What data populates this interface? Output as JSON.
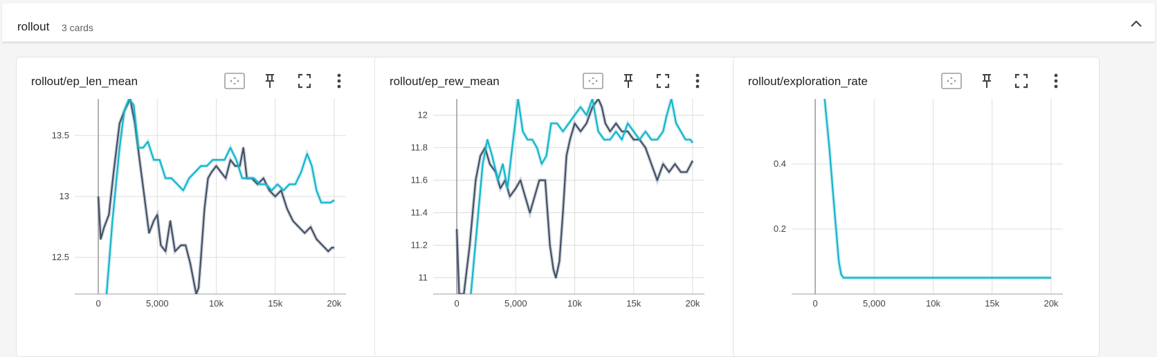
{
  "group": {
    "title": "rollout",
    "count": "3 cards"
  },
  "icons": {
    "collapse": "chevron-up-icon",
    "fit": "fit-domain-icon",
    "pin": "pin-icon",
    "fullscreen": "fullscreen-icon",
    "more": "more-vert-icon"
  },
  "colors": {
    "run1": "#425066",
    "run2": "#12b5cb",
    "grid": "#dddddd",
    "axis": "#9e9e9e"
  },
  "cards": [
    {
      "title": "rollout/ep_len_mean"
    },
    {
      "title": "rollout/ep_rew_mean"
    },
    {
      "title": "rollout/exploration_rate"
    }
  ],
  "chart_data": [
    {
      "type": "line",
      "title": "rollout/ep_len_mean",
      "xlim": [
        -2000,
        21000
      ],
      "ylim": [
        12.2,
        13.8
      ],
      "xticks": [
        0,
        5000,
        10000,
        15000,
        20000
      ],
      "xtick_labels": [
        "0",
        "5,000",
        "10k",
        "15k",
        "20k"
      ],
      "yticks": [
        12.5,
        13,
        13.5
      ],
      "ytick_labels": [
        "12.5",
        "13",
        "13.5"
      ],
      "grid": true,
      "series": [
        {
          "color": "#425066",
          "x": [
            0,
            200,
            500,
            900,
            1300,
            1800,
            2200,
            2700,
            3100,
            3500,
            3900,
            4300,
            4700,
            5000,
            5300,
            5700,
            6100,
            6500,
            7000,
            7400,
            7800,
            8100,
            8300,
            8500,
            8700,
            9000,
            9300,
            9600,
            10000,
            10400,
            10800,
            11200,
            11600,
            12000,
            12300,
            12600,
            13000,
            13500,
            14000,
            14500,
            15000,
            15500,
            16000,
            16500,
            17000,
            17500,
            18000,
            18500,
            19000,
            19500,
            19800,
            20000
          ],
          "y": [
            13.0,
            12.65,
            12.75,
            12.85,
            13.2,
            13.6,
            13.7,
            13.8,
            13.6,
            13.3,
            13.0,
            12.7,
            12.8,
            12.85,
            12.6,
            12.55,
            12.8,
            12.55,
            12.6,
            12.6,
            12.45,
            12.3,
            12.2,
            12.25,
            12.5,
            12.9,
            13.15,
            13.2,
            13.25,
            13.2,
            13.15,
            13.3,
            13.25,
            13.25,
            13.4,
            13.15,
            13.15,
            13.1,
            13.15,
            13.05,
            13.0,
            13.05,
            12.9,
            12.8,
            12.75,
            12.7,
            12.75,
            12.65,
            12.6,
            12.55,
            12.58,
            12.58
          ]
        },
        {
          "color": "#12b5cb",
          "x": [
            700,
            1200,
            1800,
            2200,
            2600,
            3000,
            3400,
            3800,
            4200,
            4700,
            5200,
            5700,
            6200,
            6700,
            7200,
            7700,
            8200,
            8700,
            9200,
            9700,
            10200,
            10700,
            11200,
            11700,
            12200,
            12700,
            13200,
            13700,
            14200,
            14700,
            15200,
            15700,
            16200,
            16700,
            17200,
            17700,
            18100,
            18500,
            18900,
            19300,
            19700,
            20000
          ],
          "y": [
            12.2,
            12.8,
            13.4,
            13.7,
            13.8,
            13.75,
            13.4,
            13.4,
            13.45,
            13.3,
            13.3,
            13.15,
            13.15,
            13.1,
            13.05,
            13.15,
            13.2,
            13.25,
            13.25,
            13.3,
            13.3,
            13.3,
            13.4,
            13.3,
            13.15,
            13.15,
            13.15,
            13.1,
            13.1,
            13.05,
            13.1,
            13.05,
            13.1,
            13.1,
            13.2,
            13.35,
            13.25,
            13.05,
            12.95,
            12.95,
            12.95,
            12.97
          ]
        }
      ]
    },
    {
      "type": "line",
      "title": "rollout/ep_rew_mean",
      "xlim": [
        -2000,
        21000
      ],
      "ylim": [
        10.9,
        12.1
      ],
      "xticks": [
        0,
        5000,
        10000,
        15000,
        20000
      ],
      "xtick_labels": [
        "0",
        "5,000",
        "10k",
        "15k",
        "20k"
      ],
      "yticks": [
        11,
        11.2,
        11.4,
        11.6,
        11.8,
        12
      ],
      "ytick_labels": [
        "11",
        "11.2",
        "11.4",
        "11.6",
        "11.8",
        "12"
      ],
      "grid": true,
      "series": [
        {
          "color": "#425066",
          "x": [
            0,
            200,
            600,
            1100,
            1600,
            2000,
            2400,
            2800,
            3300,
            3700,
            4100,
            4500,
            5000,
            5400,
            5800,
            6200,
            6600,
            7000,
            7500,
            7900,
            8200,
            8400,
            8700,
            9000,
            9300,
            9600,
            10000,
            10500,
            11000,
            11500,
            12000,
            12300,
            12600,
            13000,
            13500,
            14000,
            14500,
            15000,
            15500,
            16000,
            16500,
            17000,
            17500,
            18000,
            18500,
            19000,
            19500,
            20000
          ],
          "y": [
            11.3,
            10.9,
            10.9,
            11.2,
            11.6,
            11.75,
            11.8,
            11.7,
            11.65,
            11.55,
            11.6,
            11.5,
            11.55,
            11.6,
            11.5,
            11.4,
            11.5,
            11.6,
            11.6,
            11.2,
            11.05,
            11.0,
            11.1,
            11.4,
            11.75,
            11.85,
            11.95,
            11.9,
            11.95,
            12.05,
            12.1,
            12.05,
            11.95,
            11.9,
            11.95,
            11.9,
            11.9,
            11.85,
            11.85,
            11.8,
            11.7,
            11.6,
            11.7,
            11.65,
            11.7,
            11.65,
            11.65,
            11.72
          ]
        },
        {
          "color": "#12b5cb",
          "x": [
            1200,
            1700,
            2200,
            2600,
            3000,
            3500,
            3900,
            4300,
            4700,
            5200,
            5600,
            6000,
            6400,
            6800,
            7200,
            7600,
            8000,
            8500,
            9000,
            9500,
            10000,
            10500,
            11000,
            11500,
            12000,
            12500,
            13000,
            13500,
            14000,
            14500,
            15000,
            15500,
            16000,
            16500,
            17000,
            17500,
            17800,
            18200,
            18600,
            19000,
            19400,
            19800,
            20000
          ],
          "y": [
            10.9,
            11.3,
            11.7,
            11.85,
            11.75,
            11.6,
            11.7,
            11.55,
            11.8,
            12.1,
            11.9,
            11.85,
            11.85,
            11.8,
            11.7,
            11.75,
            11.95,
            11.95,
            11.9,
            11.95,
            12.0,
            12.05,
            12.0,
            12.1,
            11.9,
            11.85,
            11.85,
            11.9,
            11.85,
            11.95,
            11.9,
            11.85,
            11.9,
            11.85,
            11.85,
            11.9,
            12.0,
            12.1,
            11.95,
            11.9,
            11.85,
            11.85,
            11.83
          ]
        }
      ]
    },
    {
      "type": "line",
      "title": "rollout/exploration_rate",
      "xlim": [
        -2000,
        21000
      ],
      "ylim": [
        0,
        0.6
      ],
      "xticks": [
        0,
        5000,
        10000,
        15000,
        20000
      ],
      "xtick_labels": [
        "0",
        "5,000",
        "10k",
        "15k",
        "20k"
      ],
      "yticks": [
        0.2,
        0.4
      ],
      "ytick_labels": [
        "0.2",
        "0.4"
      ],
      "grid": true,
      "series": [
        {
          "color": "#12b5cb",
          "x": [
            800,
            1200,
            1600,
            2000,
            2200,
            2400,
            3000,
            20000
          ],
          "y": [
            0.6,
            0.45,
            0.27,
            0.1,
            0.06,
            0.05,
            0.05,
            0.05
          ]
        }
      ]
    }
  ]
}
